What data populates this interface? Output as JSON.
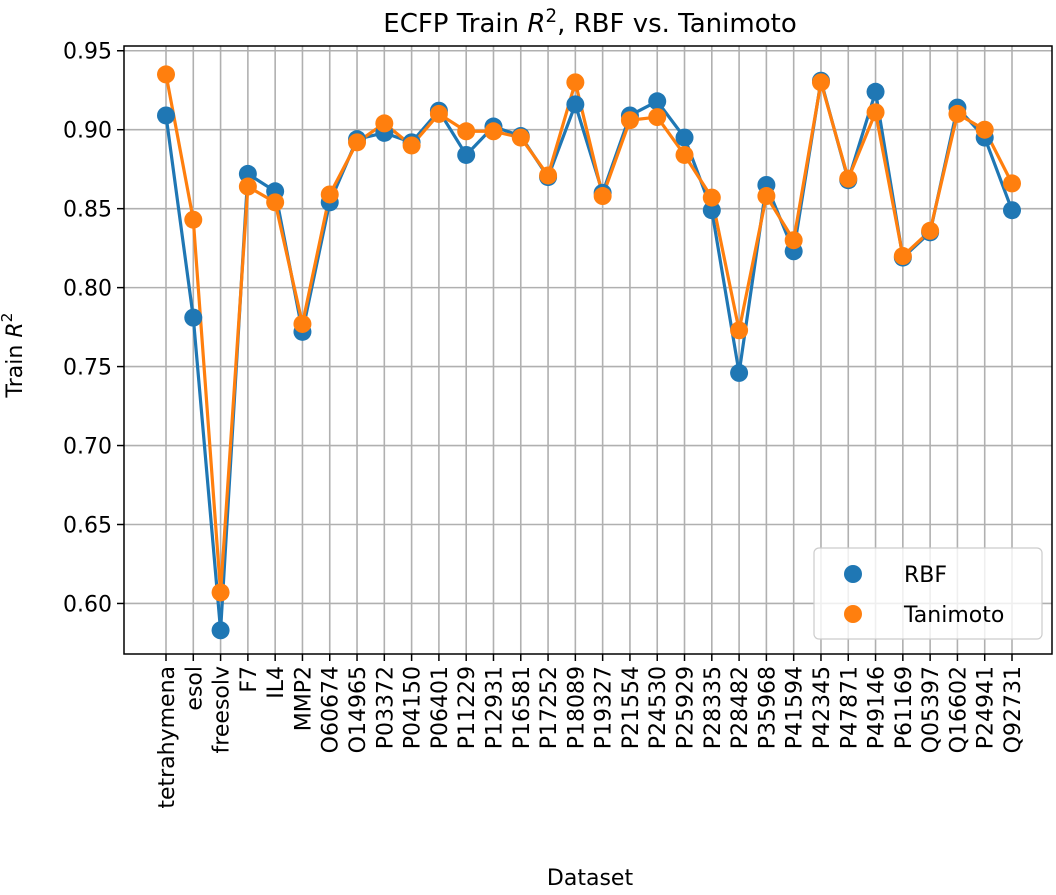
{
  "chart_data": {
    "type": "line",
    "title": "ECFP Train R², RBF vs. Tanimoto",
    "title_parts": {
      "prefix": "ECFP Train ",
      "italic": "R",
      "sup": "2",
      "suffix": ", RBF vs. Tanimoto"
    },
    "xlabel": "Dataset",
    "ylabel": "Train R²",
    "ylabel_parts": {
      "prefix": "Train ",
      "italic": "R",
      "sup": "2"
    },
    "ylim": [
      0.568,
      0.953
    ],
    "yticks": [
      0.6,
      0.65,
      0.7,
      0.75,
      0.8,
      0.85,
      0.9,
      0.95
    ],
    "grid": true,
    "legend_position": "bottom-right",
    "categories": [
      "tetrahymena",
      "esol",
      "freesolv",
      "F7",
      "IL4",
      "MMP2",
      "O60674",
      "O14965",
      "P03372",
      "P04150",
      "P06401",
      "P11229",
      "P12931",
      "P16581",
      "P17252",
      "P18089",
      "P19327",
      "P21554",
      "P24530",
      "P25929",
      "P28335",
      "P28482",
      "P35968",
      "P41594",
      "P42345",
      "P47871",
      "P49146",
      "P61169",
      "Q05397",
      "Q16602",
      "P24941",
      "Q92731"
    ],
    "series": [
      {
        "name": "RBF",
        "color": "#1f77b4",
        "values": [
          0.909,
          0.781,
          0.583,
          0.872,
          0.861,
          0.772,
          0.854,
          0.894,
          0.898,
          0.892,
          0.912,
          0.884,
          0.902,
          0.896,
          0.87,
          0.916,
          0.86,
          0.909,
          0.918,
          0.895,
          0.849,
          0.746,
          0.865,
          0.823,
          0.931,
          0.868,
          0.924,
          0.819,
          0.835,
          0.914,
          0.895,
          0.849
        ]
      },
      {
        "name": "Tanimoto",
        "color": "#ff7f0e",
        "values": [
          0.935,
          0.843,
          0.607,
          0.864,
          0.854,
          0.777,
          0.859,
          0.892,
          0.904,
          0.89,
          0.91,
          0.899,
          0.899,
          0.895,
          0.871,
          0.93,
          0.858,
          0.906,
          0.908,
          0.884,
          0.857,
          0.773,
          0.858,
          0.83,
          0.93,
          0.869,
          0.911,
          0.82,
          0.836,
          0.91,
          0.9,
          0.866
        ]
      }
    ]
  }
}
